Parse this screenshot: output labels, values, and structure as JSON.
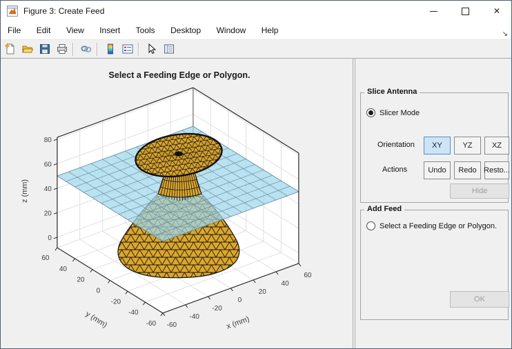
{
  "window": {
    "title": "Figure 3: Create Feed"
  },
  "menu": {
    "items": [
      "File",
      "Edit",
      "View",
      "Insert",
      "Tools",
      "Desktop",
      "Window",
      "Help"
    ],
    "overflow_icon": "↘"
  },
  "toolbar": {
    "buttons": [
      "new-figure",
      "open-file",
      "save-figure",
      "print-figure",
      "link-plot",
      "insert-colorbar",
      "insert-legend",
      "edit-plot",
      "property-inspector"
    ]
  },
  "plot": {
    "title": "Select a Feeding Edge or Polygon.",
    "xlabel": "x (mm)",
    "ylabel": "y (mm)",
    "zlabel": "z (mm)",
    "x_ticks": [
      "-60",
      "-40",
      "-20",
      "0",
      "20",
      "40",
      "60"
    ],
    "y_ticks": [
      "60",
      "40",
      "20",
      "0",
      "-20",
      "-40",
      "-60"
    ],
    "z_ticks": [
      "0",
      "20",
      "40",
      "60",
      "80"
    ]
  },
  "chart_data": {
    "type": "surface-3d-mesh",
    "title": "Select a Feeding Edge or Polygon.",
    "axes": {
      "x": {
        "label": "x (mm)",
        "range": [
          -60,
          60
        ],
        "ticks": [
          -60,
          -40,
          -20,
          0,
          20,
          40,
          60
        ]
      },
      "y": {
        "label": "y (mm)",
        "range": [
          -60,
          60
        ],
        "ticks": [
          60,
          40,
          20,
          0,
          -20,
          -40,
          -60
        ]
      },
      "z": {
        "label": "z (mm)",
        "range": [
          -10,
          82
        ],
        "ticks": [
          0,
          20,
          40,
          60,
          80
        ]
      }
    },
    "objects": [
      {
        "name": "discone-antenna-mesh",
        "parts": [
          "top-disc",
          "feed-neck",
          "bottom-cone"
        ],
        "fill_color": "#DCA62B",
        "edge_color": "#1A1A1A",
        "cone_base_z": 0,
        "disc_top_z": 70
      },
      {
        "name": "slice-plane",
        "orientation": "XY",
        "z_mm": 50,
        "fill_color": "#9FD8EE",
        "grid_color": "#5F7A85",
        "transparent": true
      }
    ],
    "grid": true,
    "background_walls": "#FFFFFF"
  },
  "slice_panel": {
    "title": "Slice Antenna",
    "radio_label": "Slicer Mode",
    "radio_selected": true,
    "orientation_label": "Orientation",
    "orientation_buttons": [
      "XY",
      "YZ",
      "XZ"
    ],
    "active_orientation": "XY",
    "actions_label": "Actions",
    "action_buttons": [
      "Undo",
      "Redo",
      "Resto..."
    ],
    "hide_label": "Hide"
  },
  "feed_panel": {
    "title": "Add Feed",
    "radio_label": "Select a Feeding Edge or Polygon.",
    "radio_selected": false,
    "ok_label": "OK"
  },
  "colors": {
    "accent_blue": "#4D90CE",
    "gold": "#DCA62B",
    "plane_cyan": "#9FD8EE",
    "figure_bg": "#F0F0F0"
  }
}
